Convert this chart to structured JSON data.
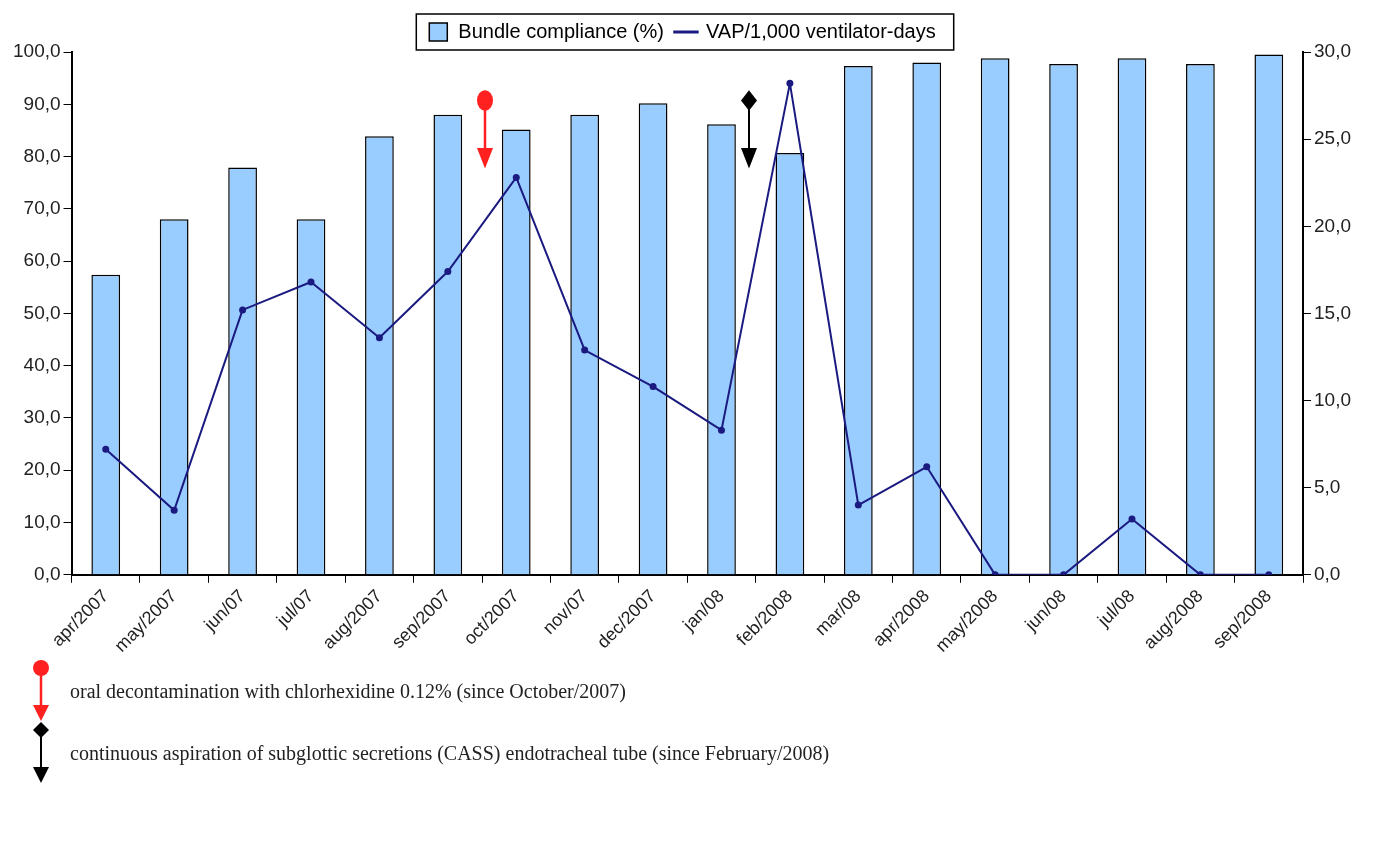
{
  "chart_data": {
    "type": "bar",
    "categories": [
      "apr/2007",
      "may/2007",
      "jun/07",
      "jul/07",
      "aug/2007",
      "sep/2007",
      "oct/2007",
      "nov/07",
      "dec/2007",
      "jan/08",
      "feb/2008",
      "mar/08",
      "apr/2008",
      "may/2008",
      "jun/08",
      "jul/08",
      "aug/2008",
      "sep/2008"
    ],
    "series": [
      {
        "name": "Bundle compliance (%)",
        "color": "#99ccff",
        "values": [
          57.4,
          68.0,
          77.9,
          68.0,
          83.9,
          88.0,
          85.2,
          88.0,
          90.2,
          86.2,
          80.7,
          97.3,
          98.0,
          98.8,
          97.7,
          98.8,
          97.7,
          99.5
        ]
      },
      {
        "name": "VAP/1,000 ventilator-days",
        "type": "line",
        "axis": "y2",
        "color": "#1a1a80",
        "marker": "circle",
        "values": [
          7.2,
          3.7,
          15.2,
          16.8,
          13.6,
          17.4,
          22.8,
          12.9,
          10.8,
          8.3,
          28.2,
          4.0,
          6.2,
          0,
          0,
          3.2,
          0,
          0
        ]
      }
    ],
    "ylim": [
      0,
      100
    ],
    "yticks": [
      {
        "value": 0,
        "label": "0,0"
      },
      {
        "value": 10,
        "label": "10,0"
      },
      {
        "value": 20,
        "label": "20,0"
      },
      {
        "value": 30,
        "label": "30,0"
      },
      {
        "value": 40,
        "label": "40,0"
      },
      {
        "value": 50,
        "label": "50,0"
      },
      {
        "value": 60,
        "label": "60,0"
      },
      {
        "value": 70,
        "label": "70,0"
      },
      {
        "value": 80,
        "label": "80,0"
      },
      {
        "value": 90,
        "label": "90,0"
      },
      {
        "value": 100,
        "label": "100,0"
      }
    ],
    "y2lim": [
      0,
      30
    ],
    "y2ticks": [
      {
        "value": 0,
        "label": "0,0"
      },
      {
        "value": 5,
        "label": "5,0"
      },
      {
        "value": 10,
        "label": "10,0"
      },
      {
        "value": 15,
        "label": "15,0"
      },
      {
        "value": 20,
        "label": "20,0"
      },
      {
        "value": 25,
        "label": "25,0"
      },
      {
        "value": 30,
        "label": "30,0"
      }
    ],
    "legend": "top",
    "annotations": [
      "oral decontamination with chlorhexidine 0.12% (since October/2007)",
      "continuous aspiration of subglottic secretions (CASS) endotracheal tube (since February/2008)"
    ]
  }
}
